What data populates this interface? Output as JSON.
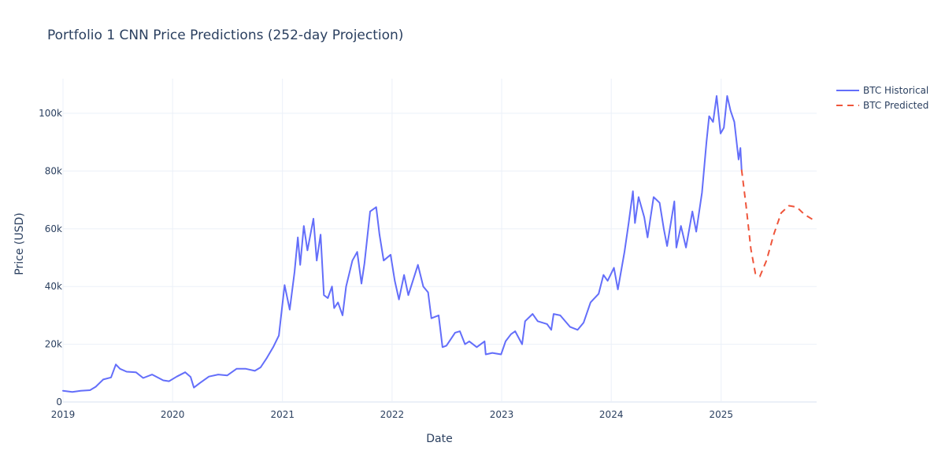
{
  "chart_data": {
    "type": "line",
    "title": "Portfolio 1 CNN Price Predictions (252-day Projection)",
    "xlabel": "Date",
    "ylabel": "Price (USD)",
    "x_tick_labels": [
      "2019",
      "2020",
      "2021",
      "2022",
      "2023",
      "2024",
      "2025"
    ],
    "y_tick_labels": [
      "0",
      "20k",
      "40k",
      "60k",
      "80k",
      "100k"
    ],
    "y_tick_values": [
      0,
      20000,
      40000,
      60000,
      80000,
      100000
    ],
    "xlim": [
      "2019-01-01",
      "2025-11-15"
    ],
    "ylim": [
      0,
      112000
    ],
    "grid": true,
    "legend_position": "right",
    "series": [
      {
        "name": "BTC Historical",
        "color": "#636efa",
        "dash": "solid",
        "points": [
          [
            "2019-01-01",
            3900
          ],
          [
            "2019-02-01",
            3500
          ],
          [
            "2019-03-01",
            3900
          ],
          [
            "2019-04-01",
            4100
          ],
          [
            "2019-04-20",
            5300
          ],
          [
            "2019-05-15",
            7800
          ],
          [
            "2019-06-10",
            8500
          ],
          [
            "2019-06-26",
            13000
          ],
          [
            "2019-07-10",
            11500
          ],
          [
            "2019-08-01",
            10500
          ],
          [
            "2019-09-01",
            10300
          ],
          [
            "2019-09-25",
            8300
          ],
          [
            "2019-10-25",
            9500
          ],
          [
            "2019-12-01",
            7500
          ],
          [
            "2019-12-20",
            7200
          ],
          [
            "2020-01-15",
            8800
          ],
          [
            "2020-02-12",
            10300
          ],
          [
            "2020-03-01",
            8700
          ],
          [
            "2020-03-12",
            5000
          ],
          [
            "2020-04-01",
            6600
          ],
          [
            "2020-05-01",
            8800
          ],
          [
            "2020-06-01",
            9500
          ],
          [
            "2020-07-01",
            9200
          ],
          [
            "2020-08-01",
            11500
          ],
          [
            "2020-09-01",
            11500
          ],
          [
            "2020-10-01",
            10800
          ],
          [
            "2020-10-20",
            12000
          ],
          [
            "2020-11-10",
            15300
          ],
          [
            "2020-12-01",
            19000
          ],
          [
            "2020-12-20",
            23000
          ],
          [
            "2021-01-08",
            40500
          ],
          [
            "2021-01-25",
            32000
          ],
          [
            "2021-02-10",
            45000
          ],
          [
            "2021-02-21",
            57000
          ],
          [
            "2021-03-01",
            47500
          ],
          [
            "2021-03-13",
            61000
          ],
          [
            "2021-03-25",
            52500
          ],
          [
            "2021-04-14",
            63500
          ],
          [
            "2021-04-25",
            49000
          ],
          [
            "2021-05-08",
            58000
          ],
          [
            "2021-05-19",
            37000
          ],
          [
            "2021-06-01",
            36000
          ],
          [
            "2021-06-15",
            40000
          ],
          [
            "2021-06-22",
            32500
          ],
          [
            "2021-07-05",
            34500
          ],
          [
            "2021-07-20",
            30000
          ],
          [
            "2021-08-01",
            40000
          ],
          [
            "2021-08-22",
            49000
          ],
          [
            "2021-09-07",
            52000
          ],
          [
            "2021-09-21",
            41000
          ],
          [
            "2021-10-01",
            48000
          ],
          [
            "2021-10-20",
            66000
          ],
          [
            "2021-11-09",
            67500
          ],
          [
            "2021-11-20",
            58000
          ],
          [
            "2021-12-04",
            49000
          ],
          [
            "2021-12-27",
            51000
          ],
          [
            "2022-01-10",
            42000
          ],
          [
            "2022-01-24",
            35500
          ],
          [
            "2022-02-10",
            44000
          ],
          [
            "2022-02-24",
            37000
          ],
          [
            "2022-03-28",
            47500
          ],
          [
            "2022-04-15",
            40000
          ],
          [
            "2022-05-01",
            38000
          ],
          [
            "2022-05-12",
            29000
          ],
          [
            "2022-06-05",
            30000
          ],
          [
            "2022-06-18",
            19000
          ],
          [
            "2022-07-01",
            19500
          ],
          [
            "2022-07-30",
            24000
          ],
          [
            "2022-08-15",
            24500
          ],
          [
            "2022-09-01",
            20000
          ],
          [
            "2022-09-15",
            21000
          ],
          [
            "2022-10-10",
            19000
          ],
          [
            "2022-11-05",
            21000
          ],
          [
            "2022-11-09",
            16500
          ],
          [
            "2022-12-01",
            17000
          ],
          [
            "2022-12-30",
            16500
          ],
          [
            "2023-01-14",
            21000
          ],
          [
            "2023-02-01",
            23500
          ],
          [
            "2023-02-15",
            24500
          ],
          [
            "2023-03-10",
            20000
          ],
          [
            "2023-03-20",
            28000
          ],
          [
            "2023-04-14",
            30500
          ],
          [
            "2023-05-01",
            28000
          ],
          [
            "2023-06-01",
            27000
          ],
          [
            "2023-06-15",
            25000
          ],
          [
            "2023-06-23",
            30500
          ],
          [
            "2023-07-15",
            30000
          ],
          [
            "2023-08-17",
            26000
          ],
          [
            "2023-09-11",
            25000
          ],
          [
            "2023-10-01",
            27500
          ],
          [
            "2023-10-24",
            34500
          ],
          [
            "2023-11-20",
            37500
          ],
          [
            "2023-12-06",
            44000
          ],
          [
            "2023-12-20",
            42000
          ],
          [
            "2024-01-10",
            46500
          ],
          [
            "2024-01-23",
            39000
          ],
          [
            "2024-02-14",
            52000
          ],
          [
            "2024-02-28",
            62000
          ],
          [
            "2024-03-13",
            73000
          ],
          [
            "2024-03-20",
            62000
          ],
          [
            "2024-04-01",
            71000
          ],
          [
            "2024-04-20",
            64000
          ],
          [
            "2024-05-01",
            57000
          ],
          [
            "2024-05-21",
            71000
          ],
          [
            "2024-06-10",
            69000
          ],
          [
            "2024-06-24",
            60000
          ],
          [
            "2024-07-05",
            54000
          ],
          [
            "2024-07-29",
            69500
          ],
          [
            "2024-08-05",
            53500
          ],
          [
            "2024-08-20",
            61000
          ],
          [
            "2024-09-06",
            53500
          ],
          [
            "2024-09-27",
            66000
          ],
          [
            "2024-10-10",
            59000
          ],
          [
            "2024-10-29",
            72500
          ],
          [
            "2024-11-13",
            90000
          ],
          [
            "2024-11-22",
            99000
          ],
          [
            "2024-12-05",
            97000
          ],
          [
            "2024-12-17",
            106000
          ],
          [
            "2024-12-30",
            93000
          ],
          [
            "2025-01-10",
            95000
          ],
          [
            "2025-01-21",
            106000
          ],
          [
            "2025-02-01",
            101000
          ],
          [
            "2025-02-14",
            97000
          ],
          [
            "2025-02-28",
            84000
          ],
          [
            "2025-03-06",
            88000
          ],
          [
            "2025-03-10",
            80500
          ]
        ]
      },
      {
        "name": "BTC Predicted",
        "color": "#ef553b",
        "dash": "dashed",
        "points": [
          [
            "2025-03-10",
            80500
          ],
          [
            "2025-03-25",
            68000
          ],
          [
            "2025-04-10",
            53000
          ],
          [
            "2025-04-25",
            44500
          ],
          [
            "2025-05-10",
            43500
          ],
          [
            "2025-06-01",
            49000
          ],
          [
            "2025-06-25",
            58000
          ],
          [
            "2025-07-20",
            65500
          ],
          [
            "2025-08-15",
            68000
          ],
          [
            "2025-09-10",
            67500
          ],
          [
            "2025-10-05",
            65000
          ],
          [
            "2025-11-05",
            63000
          ]
        ]
      }
    ]
  }
}
